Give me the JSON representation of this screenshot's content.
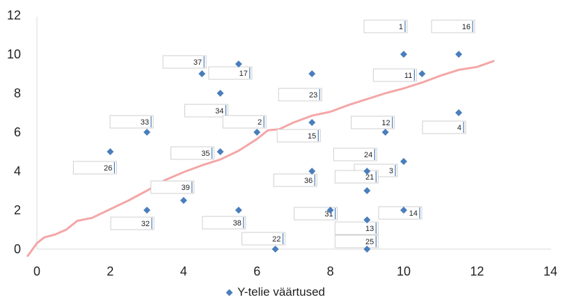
{
  "chart_data": {
    "type": "scatter",
    "title": "",
    "xlabel": "",
    "ylabel": "",
    "xlim": [
      0,
      14
    ],
    "ylim": [
      0,
      12
    ],
    "x_ticks": [
      "0",
      "2",
      "4",
      "6",
      "8",
      "10",
      "12",
      "14"
    ],
    "y_ticks": [
      "0",
      "2",
      "4",
      "6",
      "8",
      "10",
      "12"
    ],
    "grid": false,
    "legend_position": "bottom",
    "marker_color": "#4a7ebb",
    "trend_color": "#f4a6a6",
    "series": [
      {
        "name": "Y-telie väärtused",
        "points": [
          {
            "label": "1",
            "x": 10,
            "y": 10
          },
          {
            "label": "16",
            "x": 11.5,
            "y": 10
          },
          {
            "label": "37",
            "x": 4.5,
            "y": 9
          },
          {
            "label": "17",
            "x": 5.5,
            "y": 9.5
          },
          {
            "label": "11",
            "x": 10.5,
            "y": 9
          },
          {
            "label": "23",
            "x": 7.5,
            "y": 9
          },
          {
            "label": "34",
            "x": 5,
            "y": 8
          },
          {
            "label": "4",
            "x": 11.5,
            "y": 7
          },
          {
            "label": "33",
            "x": 3,
            "y": 6
          },
          {
            "label": "2",
            "x": 6,
            "y": 6
          },
          {
            "label": "12",
            "x": 9.5,
            "y": 6
          },
          {
            "label": "15",
            "x": 7.5,
            "y": 6.5
          },
          {
            "label": "35",
            "x": 5,
            "y": 5
          },
          {
            "label": "26",
            "x": 2,
            "y": 5
          },
          {
            "label": "24",
            "x": 9,
            "y": 4
          },
          {
            "label": "3",
            "x": 10,
            "y": 4.5
          },
          {
            "label": "36",
            "x": 7.5,
            "y": 4
          },
          {
            "label": "39",
            "x": 4,
            "y": 2.5
          },
          {
            "label": "21",
            "x": 9,
            "y": 3
          },
          {
            "label": "32",
            "x": 3,
            "y": 2
          },
          {
            "label": "38",
            "x": 5.5,
            "y": 2
          },
          {
            "label": "31",
            "x": 8,
            "y": 2
          },
          {
            "label": "14",
            "x": 10,
            "y": 2
          },
          {
            "label": "13",
            "x": 9,
            "y": 1.5
          },
          {
            "label": "22",
            "x": 6.5,
            "y": 0
          },
          {
            "label": "25",
            "x": 9,
            "y": 0
          }
        ]
      }
    ],
    "trend_line": [
      [
        -0.25,
        -0.35
      ],
      [
        0,
        0.3
      ],
      [
        0.2,
        0.6
      ],
      [
        0.5,
        0.75
      ],
      [
        0.8,
        1.0
      ],
      [
        1.1,
        1.45
      ],
      [
        1.5,
        1.6
      ],
      [
        2,
        2.05
      ],
      [
        2.5,
        2.5
      ],
      [
        3,
        3.0
      ],
      [
        3.5,
        3.55
      ],
      [
        4,
        3.95
      ],
      [
        4.5,
        4.3
      ],
      [
        5,
        4.6
      ],
      [
        5.5,
        5.05
      ],
      [
        6,
        5.65
      ],
      [
        6.3,
        6.1
      ],
      [
        6.6,
        6.15
      ],
      [
        7,
        6.5
      ],
      [
        7.5,
        6.85
      ],
      [
        8,
        7.05
      ],
      [
        8.5,
        7.4
      ],
      [
        9,
        7.7
      ],
      [
        9.5,
        8.0
      ],
      [
        10,
        8.25
      ],
      [
        10.5,
        8.55
      ],
      [
        11,
        8.9
      ],
      [
        11.5,
        9.2
      ],
      [
        12,
        9.35
      ],
      [
        12.45,
        9.65
      ]
    ]
  }
}
